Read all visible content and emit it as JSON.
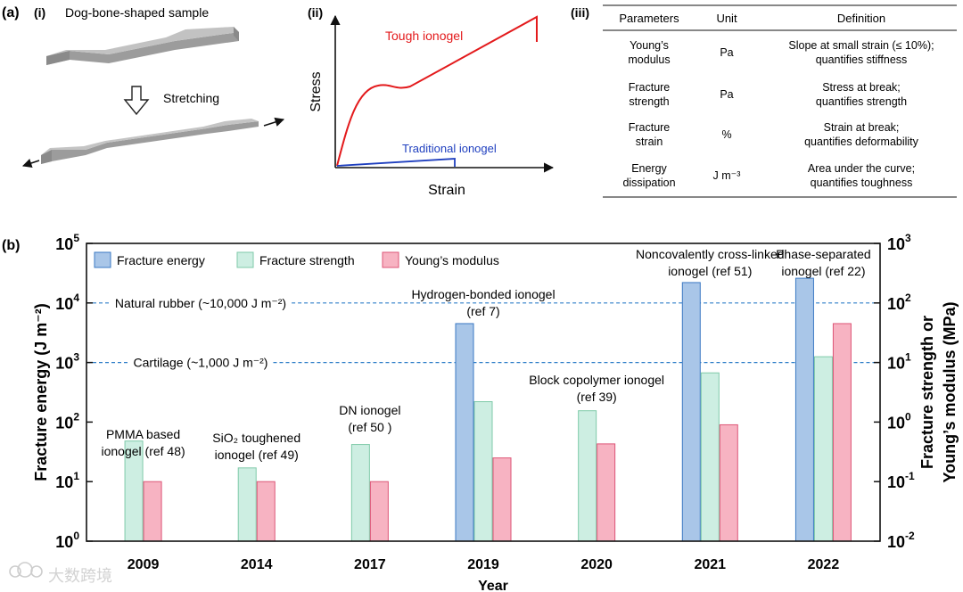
{
  "panel_a": {
    "label": "(a)",
    "i": {
      "label": "(i)",
      "title": "Dog-bone-shaped sample",
      "arrow_label": "Stretching",
      "colors": {
        "sample_top": "#b4b4b4",
        "sample_side": "#8a8a8a",
        "sample_front": "#9c9c9c"
      }
    },
    "ii": {
      "label": "(ii)",
      "y_axis": "Stress",
      "x_axis": "Strain",
      "tough_label": "Tough ionogel",
      "traditional_label": "Traditional ionogel",
      "colors": {
        "tough": "#e31a1c",
        "traditional": "#1f3fbf"
      }
    },
    "iii": {
      "label": "(iii)",
      "headers": [
        "Parameters",
        "Unit",
        "Definition"
      ],
      "rows": [
        {
          "param": [
            "Young’s",
            "modulus"
          ],
          "unit": "Pa",
          "def": [
            "Slope at small strain (≤ 10%);",
            "quantifies stiffness"
          ]
        },
        {
          "param": [
            "Fracture",
            "strength"
          ],
          "unit": "Pa",
          "def": [
            "Stress at break;",
            "quantifies strength"
          ]
        },
        {
          "param": [
            "Fracture",
            "strain"
          ],
          "unit": "%",
          "def": [
            "Strain at break;",
            "quantifies deformability"
          ]
        },
        {
          "param": [
            "Energy",
            "dissipation"
          ],
          "unit": "J m⁻³",
          "def": [
            "Area under the curve;",
            "quantifies toughness"
          ]
        }
      ]
    }
  },
  "chart_data": {
    "panel_label": "(b)",
    "type": "bar",
    "categories": [
      "2009",
      "2014",
      "2017",
      "2019",
      "2020",
      "2021",
      "2022"
    ],
    "xlabel": "Year",
    "ylabel_left": "Fracture energy (J m⁻²)",
    "ylabel_right_line1": "Fracture strength or",
    "ylabel_right_line2": "Young’s modulus (MPa)",
    "yscale": "log",
    "ylim_left": [
      1,
      100000
    ],
    "ylim_right": [
      0.01,
      1000
    ],
    "left_ticks": [
      {
        "value": 1,
        "base": "10",
        "exp": "0"
      },
      {
        "value": 10,
        "base": "10",
        "exp": "1"
      },
      {
        "value": 100,
        "base": "10",
        "exp": "2"
      },
      {
        "value": 1000,
        "base": "10",
        "exp": "3"
      },
      {
        "value": 10000,
        "base": "10",
        "exp": "4"
      },
      {
        "value": 100000,
        "base": "10",
        "exp": "5"
      }
    ],
    "right_ticks": [
      {
        "value": 0.01,
        "base": "10",
        "exp": "-2"
      },
      {
        "value": 0.1,
        "base": "10",
        "exp": "-1"
      },
      {
        "value": 1,
        "base": "10",
        "exp": "0"
      },
      {
        "value": 10,
        "base": "10",
        "exp": "1"
      },
      {
        "value": 100,
        "base": "10",
        "exp": "2"
      },
      {
        "value": 1000,
        "base": "10",
        "exp": "3"
      }
    ],
    "series": [
      {
        "name": "Fracture energy",
        "axis": "left",
        "color": "#a9c6e8",
        "stroke": "#3a78c3",
        "values": [
          null,
          null,
          null,
          4500,
          null,
          22000,
          26000
        ]
      },
      {
        "name": "Fracture strength",
        "axis": "right",
        "color": "#cdeee2",
        "stroke": "#7fcaa9",
        "values": [
          0.48,
          0.17,
          0.42,
          2.2,
          1.55,
          6.7,
          12.5
        ]
      },
      {
        "name": "Young’s modulus",
        "axis": "right",
        "color": "#f7b3c2",
        "stroke": "#dd5677",
        "values": [
          0.1,
          0.1,
          0.1,
          0.25,
          0.43,
          0.9,
          45
        ]
      }
    ],
    "reference_lines": [
      {
        "label": "Natural rubber (~10,000 J m⁻²)",
        "value": 10000
      },
      {
        "label": "Cartilage (~1,000 J m⁻²)",
        "value": 1000
      }
    ],
    "reference_color": "#2f7fc8",
    "annotations": [
      {
        "category": "2009",
        "lines": [
          "PMMA based",
          "ionogel (ref 48)"
        ]
      },
      {
        "category": "2014",
        "lines": [
          "SiO₂ toughened",
          "ionogel (ref 49)"
        ]
      },
      {
        "category": "2017",
        "lines": [
          "DN ionogel",
          "(ref 50 )"
        ]
      },
      {
        "category": "2019",
        "lines": [
          "Hydrogen-bonded ionogel",
          "(ref 7)"
        ]
      },
      {
        "category": "2020",
        "lines": [
          "Block copolymer ionogel",
          "(ref 39)"
        ]
      },
      {
        "category": "2021",
        "lines": [
          "Noncovalently cross-linked",
          "ionogel (ref 51)"
        ]
      },
      {
        "category": "2022",
        "lines": [
          "Phase-separated",
          "ionogel (ref 22)"
        ]
      }
    ],
    "legend_position": "top-left"
  },
  "watermark": "大数跨境"
}
